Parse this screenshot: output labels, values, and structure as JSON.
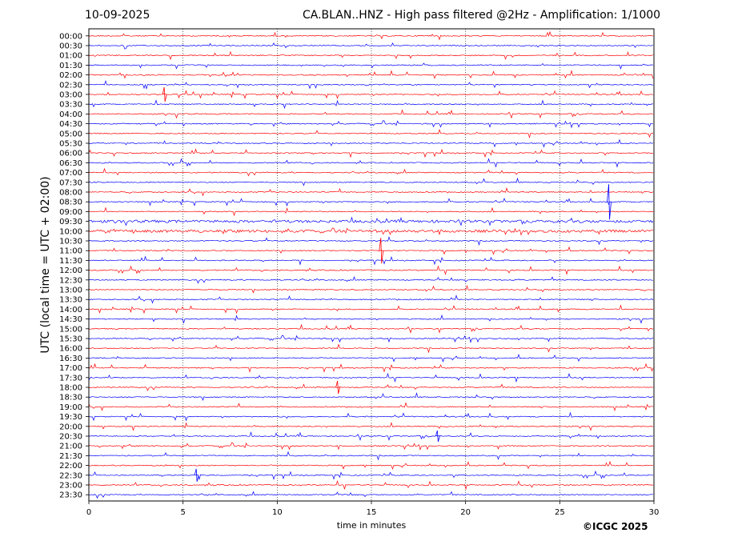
{
  "header": {
    "date": "10-09-2025",
    "title": "CA.BLAN..HNZ - High pass filtered @2Hz - Amplification: 1/1000"
  },
  "footer": {
    "copyright": "©ICGC 2025"
  },
  "chart_data": {
    "type": "line",
    "title": "CA.BLAN..HNZ - High pass filtered @2Hz - Amplification: 1/1000",
    "xlabel": "time in minutes",
    "ylabel": "UTC (local time = UTC + 02:00)",
    "xlim": [
      0,
      30
    ],
    "xticks": [
      "0",
      "5",
      "10",
      "15",
      "20",
      "25",
      "30"
    ],
    "rows": [
      "00:00",
      "00:30",
      "01:00",
      "01:30",
      "02:00",
      "02:30",
      "03:00",
      "03:30",
      "04:00",
      "04:30",
      "05:00",
      "05:30",
      "06:00",
      "06:30",
      "07:00",
      "07:30",
      "08:00",
      "08:30",
      "09:00",
      "09:30",
      "10:00",
      "10:30",
      "11:00",
      "11:30",
      "12:00",
      "12:30",
      "13:00",
      "13:30",
      "14:00",
      "14:30",
      "15:00",
      "15:30",
      "16:00",
      "16:30",
      "17:00",
      "17:30",
      "18:00",
      "18:30",
      "19:00",
      "19:30",
      "20:00",
      "20:30",
      "21:00",
      "21:30",
      "22:00",
      "22:30",
      "23:00",
      "23:30"
    ],
    "colors": [
      "#ff0000",
      "#0000ff"
    ],
    "grid": "vertical dotted at each 5 minutes",
    "legend": "none"
  }
}
